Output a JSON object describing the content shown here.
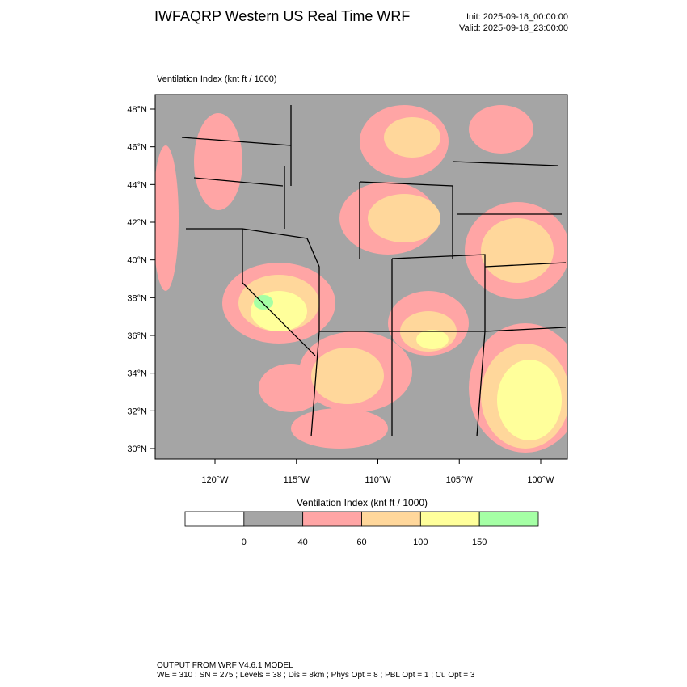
{
  "header": {
    "title": "IWFAQRP Western US Real Time WRF",
    "init": "Init: 2025-09-18_00:00:00",
    "valid": "Valid: 2025-09-18_23:00:00"
  },
  "map": {
    "label": "Ventilation Index   (knt ft / 1000)",
    "lat_labels": [
      "48°N",
      "46°N",
      "44°N",
      "42°N",
      "40°N",
      "38°N",
      "36°N",
      "34°N",
      "32°N",
      "30°N"
    ],
    "lon_labels": [
      "120°W",
      "115°W",
      "110°W",
      "105°W",
      "100°W"
    ]
  },
  "colorbar": {
    "title": "Ventilation Index   (knt ft / 1000)",
    "levels": [
      0,
      40,
      60,
      100,
      150
    ],
    "colors": [
      "#ffffff",
      "#a5a5a5",
      "#ffa5a5",
      "#ffd79b",
      "#ffff9b",
      "#a5ffa5"
    ]
  },
  "footer": {
    "line1": "OUTPUT FROM WRF V4.6.1 MODEL",
    "line2": "WE = 310 ; SN = 275 ; Levels = 38 ; Dis = 8km ; Phys Opt = 8 ; PBL Opt = 1 ; Cu Opt = 3"
  }
}
